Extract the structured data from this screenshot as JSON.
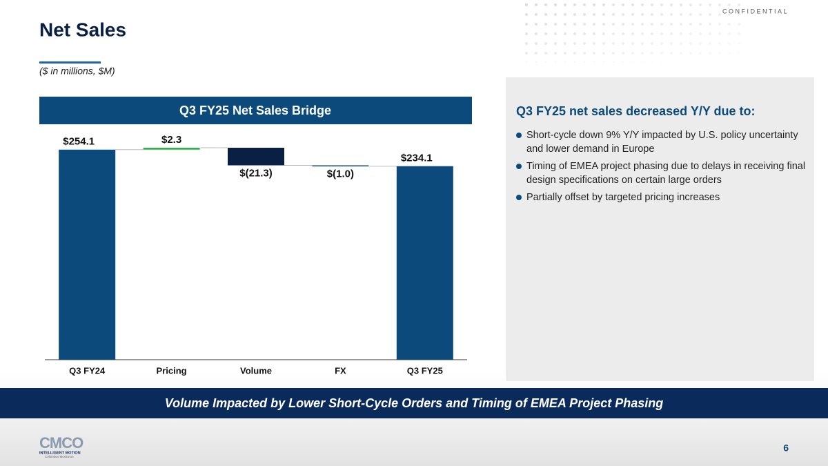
{
  "header": {
    "title": "Net Sales",
    "subtitle": "($ in millions, $M)",
    "confidential": "CONFIDENTIAL"
  },
  "chart_data": {
    "type": "waterfall",
    "title": "Q3 FY25 Net Sales Bridge",
    "categories": [
      "Q3 FY24",
      "Pricing",
      "Volume",
      "FX",
      "Q3 FY25"
    ],
    "measures": [
      "total",
      "relative",
      "relative",
      "relative",
      "total"
    ],
    "values": [
      254.1,
      2.3,
      -21.3,
      -1.0,
      234.1
    ],
    "value_labels": [
      "$254.1",
      "$2.3",
      "$(21.3)",
      "$(1.0)",
      "$234.1"
    ],
    "colors": [
      "#0b4a7a",
      "#2eb34b",
      "#0a1f44",
      "#0b4a7a",
      "#0b4a7a"
    ]
  },
  "commentary": {
    "heading": "Q3 FY25 net sales decreased Y/Y due to:",
    "bullets": [
      "Short-cycle down 9% Y/Y impacted by U.S. policy uncertainty and lower demand in Europe",
      "Timing of EMEA project phasing due to delays in receiving final design specifications on certain large orders",
      "Partially offset by targeted pricing increases"
    ]
  },
  "banner": "Volume Impacted by Lower Short-Cycle Orders and Timing of EMEA Project Phasing",
  "footer": {
    "logo": "CMCO",
    "tagline": "INTELLIGENT MOTION",
    "company": "Columbus McKinnon",
    "page": "6"
  }
}
